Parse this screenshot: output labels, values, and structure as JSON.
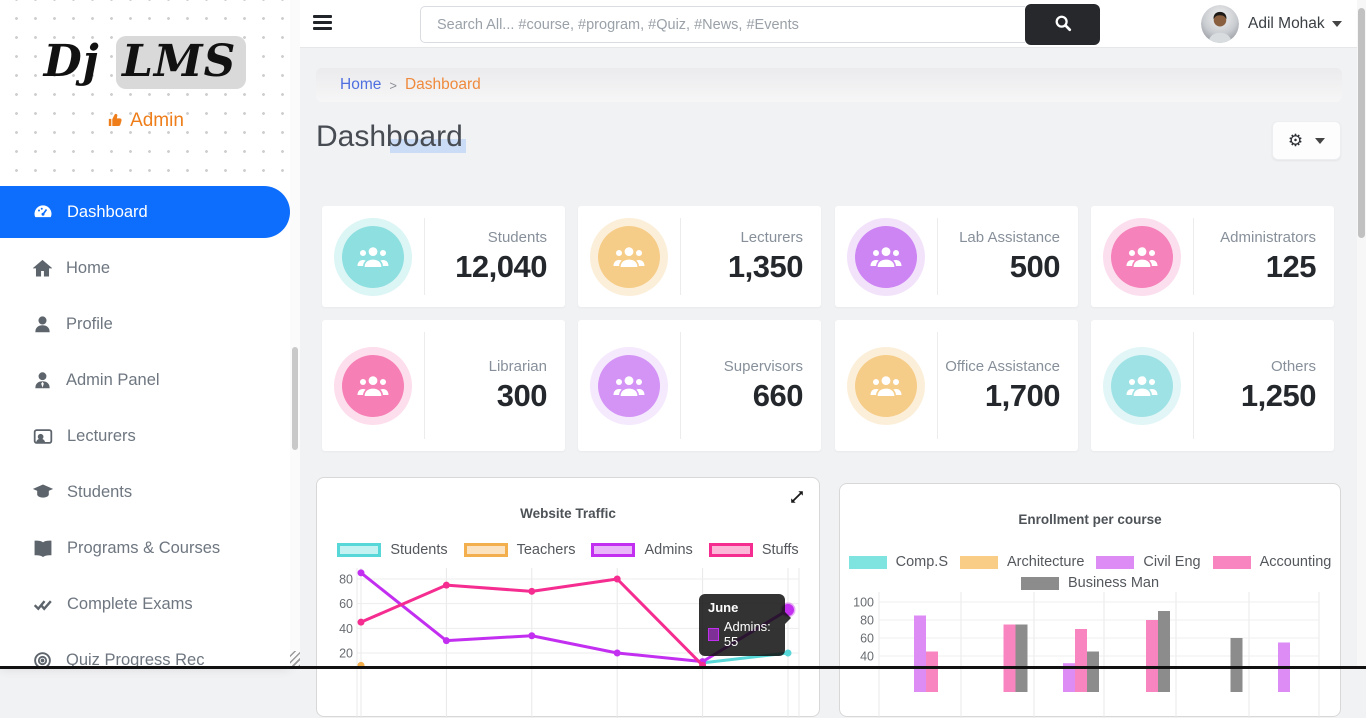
{
  "app": {
    "logo_primary": "Dj",
    "logo_highlight": "LMS",
    "role_label": "Admin"
  },
  "sidebar": {
    "items": [
      {
        "label": "Dashboard",
        "icon": "dashboard-icon",
        "active": true
      },
      {
        "label": "Home",
        "icon": "home-icon",
        "active": false
      },
      {
        "label": "Profile",
        "icon": "profile-icon",
        "active": false
      },
      {
        "label": "Admin Panel",
        "icon": "admin-panel-icon",
        "active": false
      },
      {
        "label": "Lecturers",
        "icon": "lecturers-icon",
        "active": false
      },
      {
        "label": "Students",
        "icon": "students-icon",
        "active": false
      },
      {
        "label": "Programs & Courses",
        "icon": "programs-courses-icon",
        "active": false
      },
      {
        "label": "Complete Exams",
        "icon": "complete-exams-icon",
        "active": false
      },
      {
        "label": "Quiz Progress Rec",
        "icon": "quiz-progress-icon",
        "active": false
      }
    ]
  },
  "topbar": {
    "search_placeholder": "Search All... #course, #program, #Quiz, #News, #Events",
    "user_name": "Adil Mohak"
  },
  "breadcrumb": {
    "home": "Home",
    "separator": ">",
    "current": "Dashboard"
  },
  "page": {
    "title": "Dashboard"
  },
  "stat_cards": [
    {
      "label": "Students",
      "value": "12,040",
      "color": "#8ddfe0",
      "halo": "#dcf5f5"
    },
    {
      "label": "Lecturers",
      "value": "1,350",
      "color": "#f6cd88",
      "halo": "#fcefda"
    },
    {
      "label": "Lab Assistance",
      "value": "500",
      "color": "#cd85f3",
      "halo": "#f2e3fb"
    },
    {
      "label": "Administrators",
      "value": "125",
      "color": "#f582ba",
      "halo": "#fcdfee"
    },
    {
      "label": "Librarian",
      "value": "300",
      "color": "#f67fb5",
      "halo": "#fddeec"
    },
    {
      "label": "Supervisors",
      "value": "660",
      "color": "#d494f6",
      "halo": "#f5e9fd"
    },
    {
      "label": "Office Assistance",
      "value": "1,700",
      "color": "#f6cd88",
      "halo": "#fcefda"
    },
    {
      "label": "Others",
      "value": "1,250",
      "color": "#9fe2e5",
      "halo": "#e2f6f7"
    }
  ],
  "chart_data": [
    {
      "type": "line",
      "title": "Website Traffic",
      "x": [
        "",
        "",
        "",
        "",
        "",
        "June"
      ],
      "series": [
        {
          "name": "Students",
          "color": "#57d7d7",
          "values": [
            null,
            null,
            null,
            null,
            12,
            20
          ]
        },
        {
          "name": "Teachers",
          "color": "#f3ae4e",
          "values": [
            10,
            null,
            null,
            null,
            null,
            null
          ]
        },
        {
          "name": "Admins",
          "color": "#c32ff0",
          "values": [
            85,
            30,
            34,
            20,
            13,
            55
          ]
        },
        {
          "name": "Stuffs",
          "color": "#f52d90",
          "values": [
            45,
            75,
            70,
            80,
            10,
            null
          ]
        }
      ],
      "ylim": [
        0,
        90
      ],
      "yticks": [
        80,
        60,
        40,
        20
      ],
      "grid": true,
      "legend_position": "top",
      "tooltip": {
        "title": "June",
        "series": "Admins",
        "value": 55,
        "text": "Admins: 55"
      }
    },
    {
      "type": "bar",
      "title": "Enrollment per course",
      "categories": [
        "",
        "",
        "",
        "",
        "",
        ""
      ],
      "series": [
        {
          "name": "Comp.S",
          "color": "#7fe3e0",
          "values": [
            null,
            null,
            null,
            null,
            null,
            null
          ]
        },
        {
          "name": "Architecture",
          "color": "#f9cd85",
          "values": [
            null,
            null,
            null,
            null,
            null,
            null
          ]
        },
        {
          "name": "Civil Eng",
          "color": "#dd8bf5",
          "values": [
            85,
            null,
            32,
            null,
            null,
            55
          ]
        },
        {
          "name": "Accounting",
          "color": "#f885bf",
          "values": [
            45,
            75,
            70,
            80,
            null,
            null
          ]
        },
        {
          "name": "Business Man",
          "color": "#8c8c8c",
          "values": [
            null,
            75,
            45,
            90,
            60,
            null
          ]
        }
      ],
      "ylim": [
        0,
        100
      ],
      "yticks": [
        100,
        80,
        60,
        40
      ],
      "grid": true,
      "legend_position": "top"
    }
  ]
}
